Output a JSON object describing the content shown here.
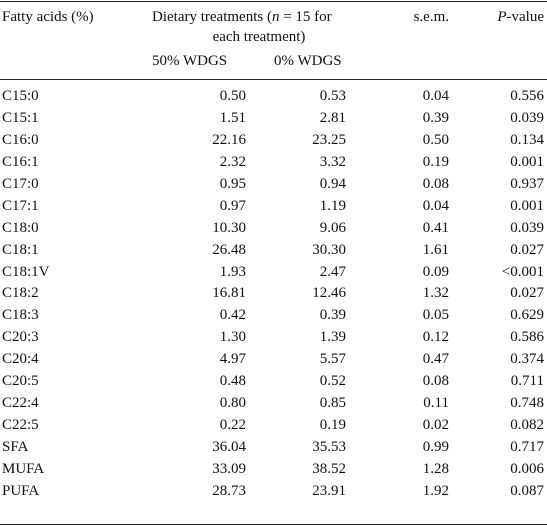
{
  "header": {
    "col_fatty_acids": "Fatty acids (%)",
    "dietary_treatments_prefix": "Dietary treatments (",
    "n_symbol": "n",
    "dietary_treatments_suffix": " = 15 for",
    "dietary_treatments_line2": "each treatment)",
    "col_50": "50% WDGS",
    "col_0": "0% WDGS",
    "col_sem": "s.e.m.",
    "col_p_symbol": "P",
    "col_p_suffix": "-value"
  },
  "rows": [
    {
      "name": "C15:0",
      "v50": "0.50",
      "v0": "0.53",
      "sem": "0.04",
      "p": "0.556"
    },
    {
      "name": "C15:1",
      "v50": "1.51",
      "v0": "2.81",
      "sem": "0.39",
      "p": "0.039"
    },
    {
      "name": "C16:0",
      "v50": "22.16",
      "v0": "23.25",
      "sem": "0.50",
      "p": "0.134"
    },
    {
      "name": "C16:1",
      "v50": "2.32",
      "v0": "3.32",
      "sem": "0.19",
      "p": "0.001"
    },
    {
      "name": "C17:0",
      "v50": "0.95",
      "v0": "0.94",
      "sem": "0.08",
      "p": "0.937"
    },
    {
      "name": "C17:1",
      "v50": "0.97",
      "v0": "1.19",
      "sem": "0.04",
      "p": "0.001"
    },
    {
      "name": "C18:0",
      "v50": "10.30",
      "v0": "9.06",
      "sem": "0.41",
      "p": "0.039"
    },
    {
      "name": "C18:1",
      "v50": "26.48",
      "v0": "30.30",
      "sem": "1.61",
      "p": "0.027"
    },
    {
      "name": "C18:1V",
      "v50": "1.93",
      "v0": "2.47",
      "sem": "0.09",
      "p": "<0.001"
    },
    {
      "name": "C18:2",
      "v50": "16.81",
      "v0": "12.46",
      "sem": "1.32",
      "p": "0.027"
    },
    {
      "name": "C18:3",
      "v50": "0.42",
      "v0": "0.39",
      "sem": "0.05",
      "p": "0.629"
    },
    {
      "name": "C20:3",
      "v50": "1.30",
      "v0": "1.39",
      "sem": "0.12",
      "p": "0.586"
    },
    {
      "name": "C20:4",
      "v50": "4.97",
      "v0": "5.57",
      "sem": "0.47",
      "p": "0.374"
    },
    {
      "name": "C20:5",
      "v50": "0.48",
      "v0": "0.52",
      "sem": "0.08",
      "p": "0.711"
    },
    {
      "name": "C22:4",
      "v50": "0.80",
      "v0": "0.85",
      "sem": "0.11",
      "p": "0.748"
    },
    {
      "name": "C22:5",
      "v50": "0.22",
      "v0": "0.19",
      "sem": "0.02",
      "p": "0.082"
    },
    {
      "name": "SFA",
      "v50": "36.04",
      "v0": "35.53",
      "sem": "0.99",
      "p": "0.717"
    },
    {
      "name": "MUFA",
      "v50": "33.09",
      "v0": "38.52",
      "sem": "1.28",
      "p": "0.006"
    },
    {
      "name": "PUFA",
      "v50": "28.73",
      "v0": "23.91",
      "sem": "1.92",
      "p": "0.087"
    }
  ]
}
